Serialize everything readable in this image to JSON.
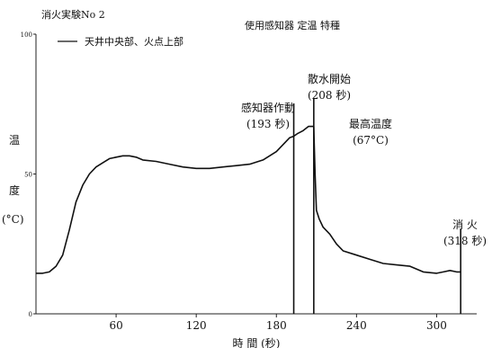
{
  "chart_data": {
    "type": "line",
    "title": "消火実験No 2",
    "subtitle": "使用感知器 定温 特種",
    "legend": "天井中央部、火点上部",
    "xlabel": "時 間 (秒)",
    "ylabel": [
      "温",
      "度",
      "(°C)"
    ],
    "xlim": [
      0,
      330
    ],
    "ylim": [
      0,
      100
    ],
    "xticks": [
      "60",
      "120",
      "180",
      "240",
      "300"
    ],
    "xtick_values": [
      60,
      120,
      180,
      240,
      300
    ],
    "yticks": [
      "100",
      "50",
      "0"
    ],
    "ytick_values": [
      100,
      50,
      0
    ],
    "series": [
      {
        "name": "天井中央部、火点上部",
        "x": [
          0,
          5,
          10,
          15,
          20,
          25,
          30,
          35,
          40,
          45,
          50,
          55,
          60,
          65,
          70,
          75,
          80,
          90,
          100,
          110,
          120,
          130,
          140,
          150,
          160,
          170,
          180,
          185,
          190,
          193,
          196,
          200,
          204,
          208,
          209,
          210,
          212,
          215,
          220,
          225,
          230,
          240,
          250,
          260,
          270,
          280,
          290,
          300,
          305,
          310,
          315,
          318
        ],
        "y": [
          14.5,
          14.5,
          15,
          17,
          21,
          30,
          40,
          46,
          50,
          52.5,
          54,
          55.5,
          56,
          56.5,
          56.5,
          56,
          55,
          54.5,
          53.5,
          52.5,
          52,
          52,
          52.5,
          53,
          53.5,
          55,
          58,
          60.5,
          63,
          63.5,
          64.5,
          65.5,
          67,
          67,
          50,
          37,
          34,
          31,
          28.5,
          25,
          22.5,
          21,
          19.5,
          18,
          17.5,
          17,
          15,
          14.5,
          15,
          15.5,
          15,
          15
        ]
      }
    ],
    "markers": [
      {
        "x": 193,
        "label": [
          "感知器作動",
          "(193 秒)"
        ]
      },
      {
        "x": 208,
        "label": [
          "散水開始",
          "(208 秒)"
        ]
      },
      {
        "x": 318,
        "label": [
          "消 火",
          "(318 秒)"
        ]
      }
    ],
    "peak_label": [
      "最高温度",
      "(67°C)"
    ],
    "grid": false
  }
}
